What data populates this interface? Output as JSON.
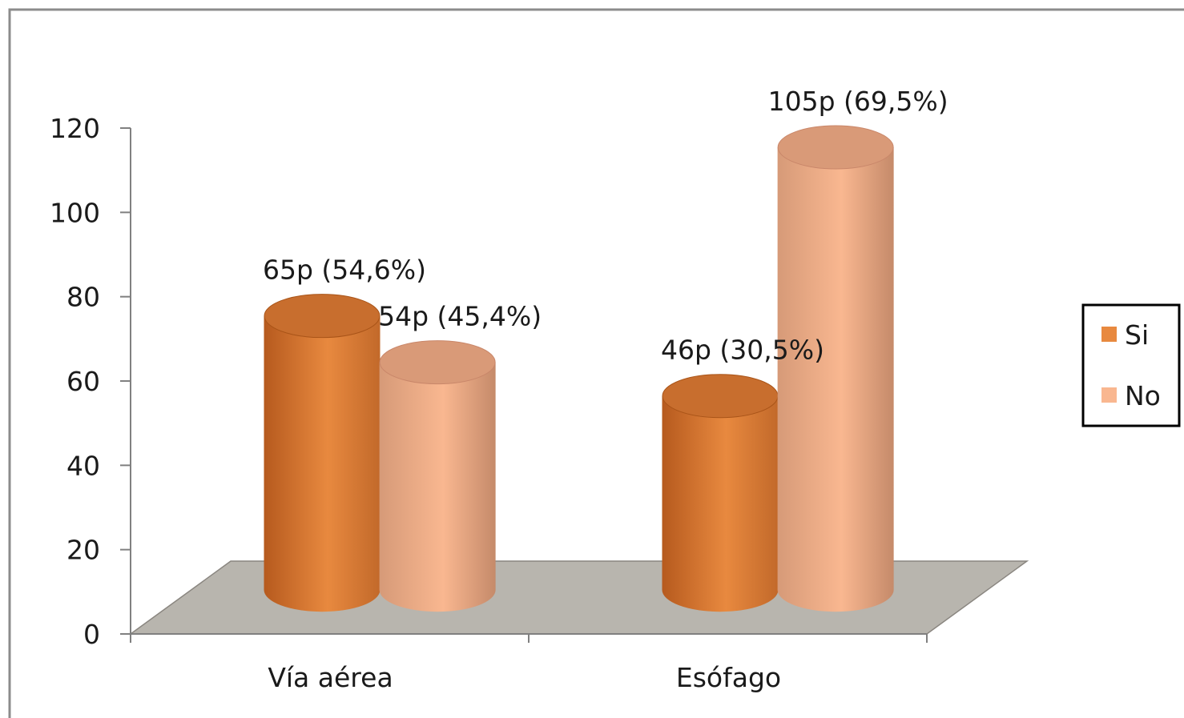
{
  "chart_data": {
    "type": "bar",
    "style": "3d-cylinder",
    "categories": [
      "Vía aérea",
      "Esófago"
    ],
    "series": [
      {
        "name": "Si",
        "values": [
          65,
          46
        ],
        "labels": [
          "65p (54,6%)",
          "46p (30,5%)"
        ],
        "color": "#E8893F"
      },
      {
        "name": "No",
        "values": [
          54,
          105
        ],
        "labels": [
          "54p (45,4%)",
          "105p (69,5%)"
        ],
        "color": "#F9B790"
      }
    ],
    "ylim": [
      0,
      120
    ],
    "yticks": [
      "0",
      "20",
      "40",
      "60",
      "80",
      "100",
      "120"
    ],
    "grid": false,
    "legend": "right",
    "floor_color": "#B8B5AE"
  }
}
